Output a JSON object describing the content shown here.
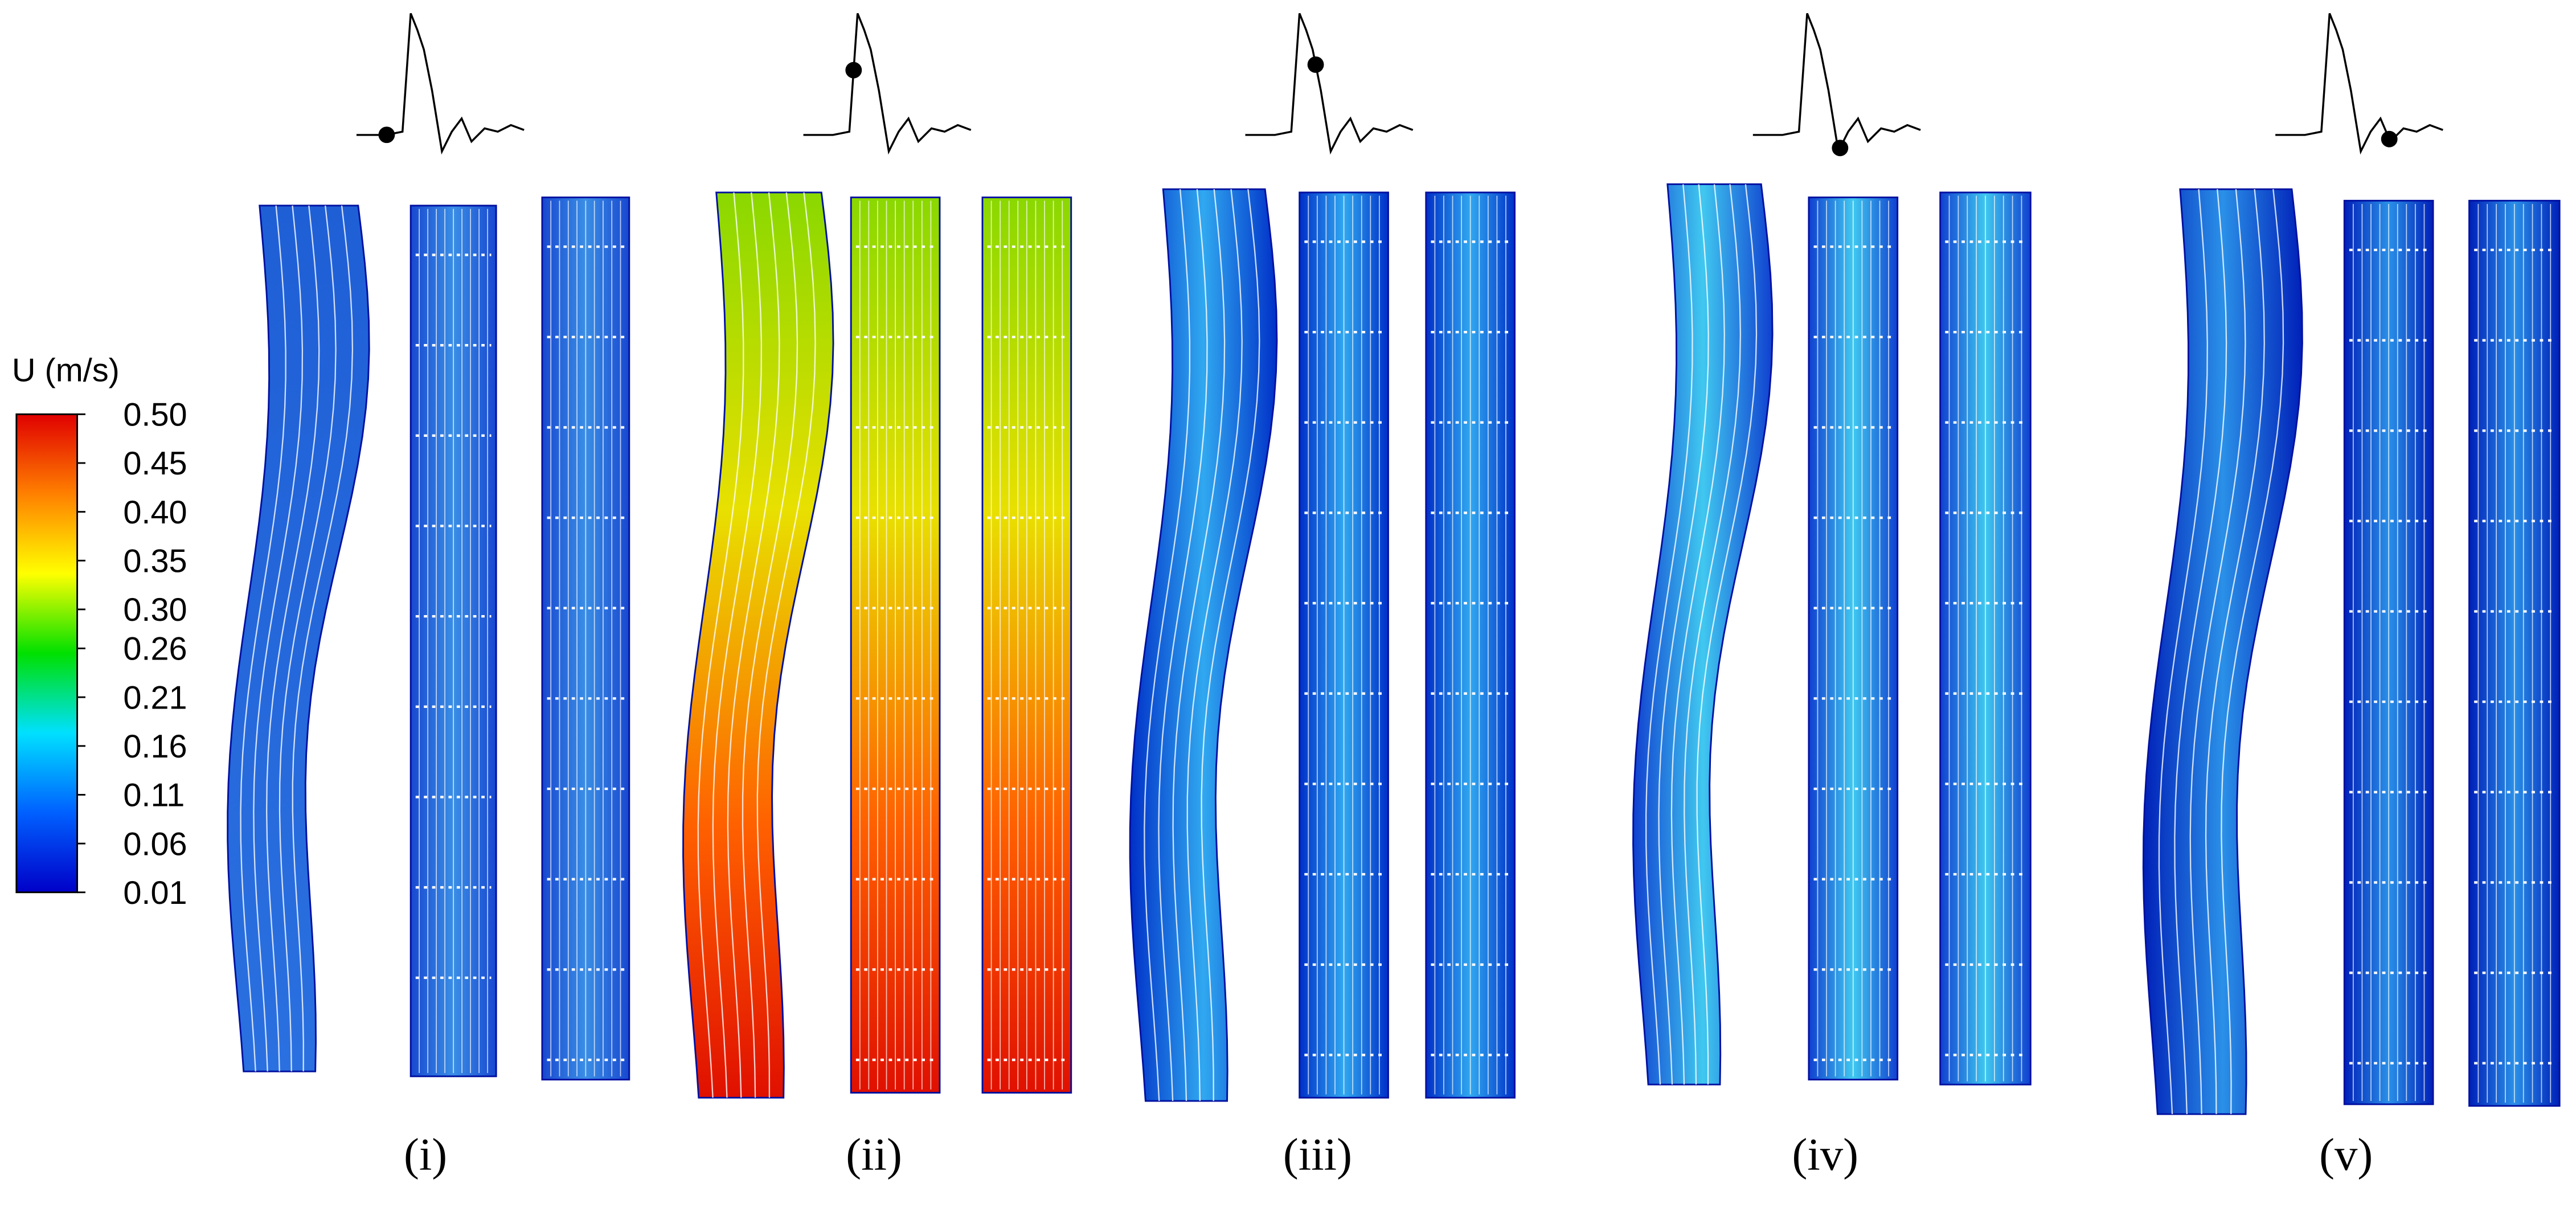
{
  "colorbar": {
    "title": "U (m/s)",
    "lim": [
      0.01,
      0.5
    ],
    "ticks": [
      {
        "value": 0.5,
        "label": "0.50"
      },
      0.45,
      {
        "value": 0.4,
        "label": "0.40"
      },
      0.35,
      {
        "value": 0.3,
        "label": "0.30"
      },
      0.26,
      0.21,
      0.16,
      0.11,
      0.06,
      0.01
    ],
    "colors": [
      "#0000c8",
      "#0060ff",
      "#00e0ff",
      "#00e000",
      "#ffff00",
      "#ff8000",
      "#e00000"
    ]
  },
  "panels": [
    {
      "label": "(i)"
    },
    {
      "label": "(ii)"
    },
    {
      "label": "(iii)"
    },
    {
      "label": "(iv)"
    },
    {
      "label": "(v)"
    }
  ]
}
